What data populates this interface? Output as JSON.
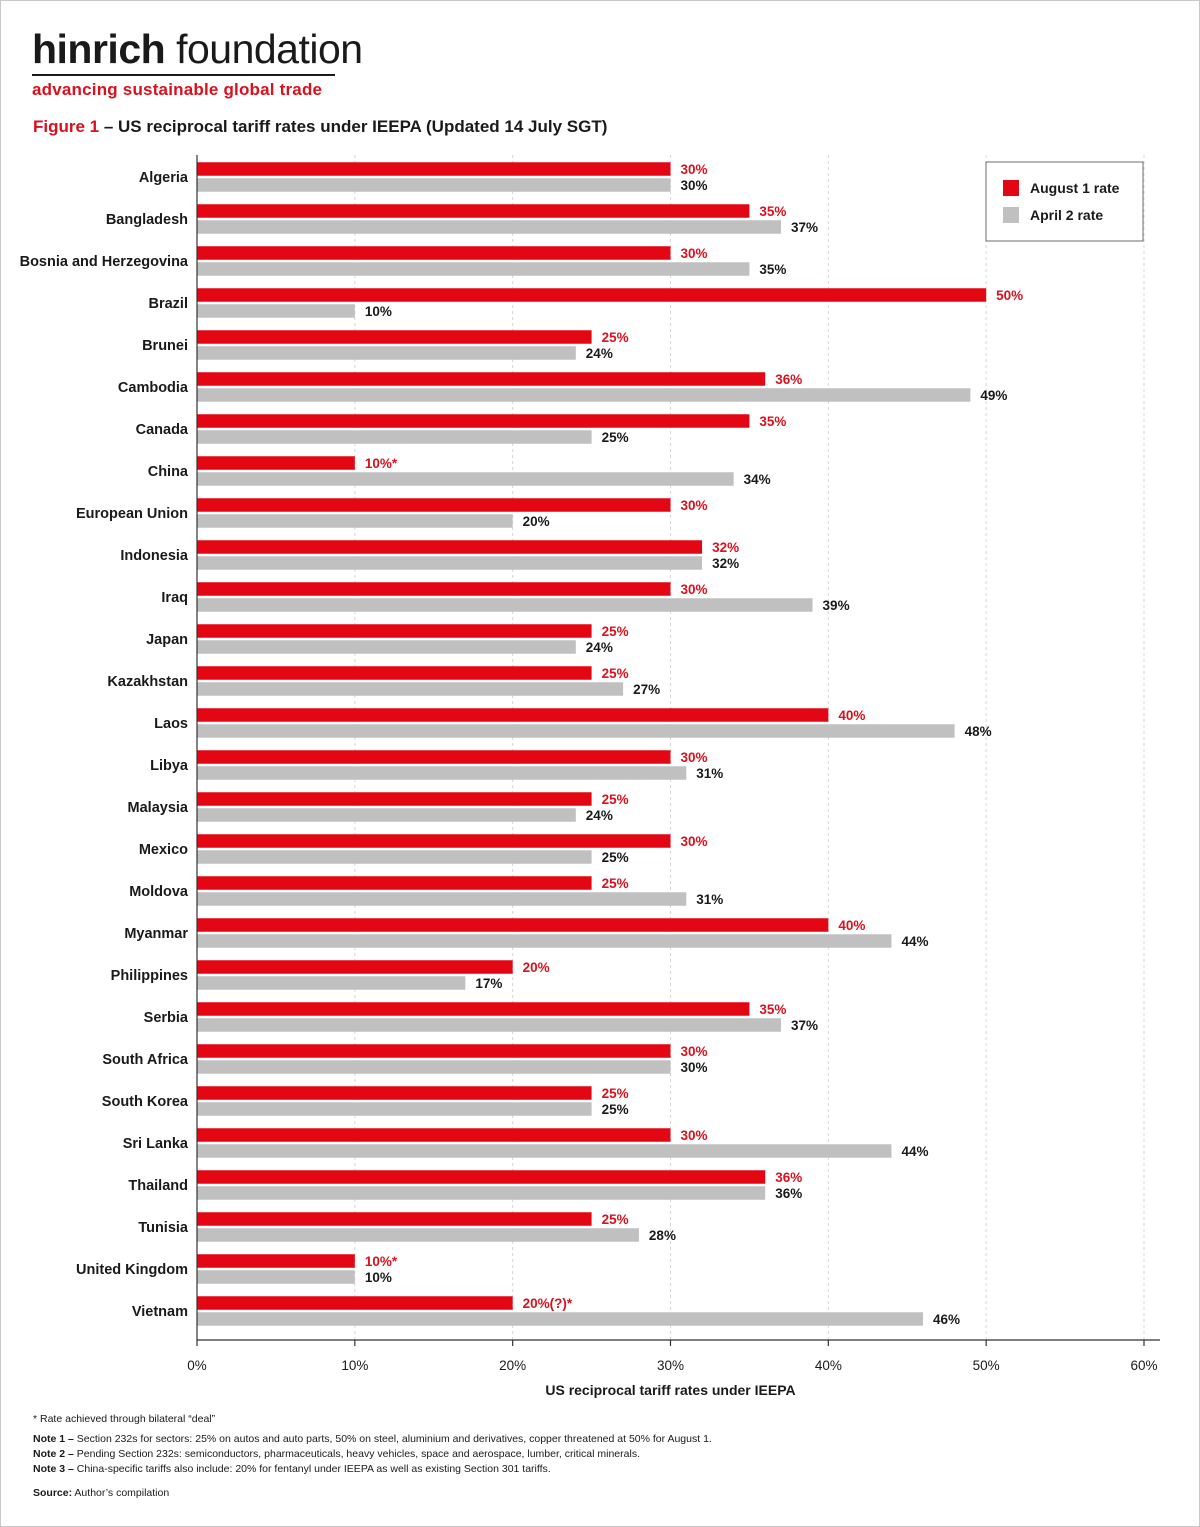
{
  "brand": {
    "name_bold": "hinrich",
    "name_rest": " foundation",
    "tagline": "advancing sustainable global trade",
    "accent": "#d9101d"
  },
  "figure": {
    "label": "Figure 1",
    "separator": " – ",
    "title": "US reciprocal tariff rates under IEEPA (Updated 14 July SGT)"
  },
  "chart_data": {
    "type": "bar",
    "orientation": "horizontal",
    "categories": [
      "Algeria",
      "Bangladesh",
      "Bosnia and Herzegovina",
      "Brazil",
      "Brunei",
      "Cambodia",
      "Canada",
      "China",
      "European Union",
      "Indonesia",
      "Iraq",
      "Japan",
      "Kazakhstan",
      "Laos",
      "Libya",
      "Malaysia",
      "Mexico",
      "Moldova",
      "Myanmar",
      "Philippines",
      "Serbia",
      "South Africa",
      "South Korea",
      "Sri Lanka",
      "Thailand",
      "Tunisia",
      "United Kingdom",
      "Vietnam"
    ],
    "series": [
      {
        "name": "August 1 rate",
        "color": "#e30613",
        "values": [
          30,
          35,
          30,
          50,
          25,
          36,
          35,
          10,
          30,
          32,
          30,
          25,
          25,
          40,
          30,
          25,
          30,
          25,
          40,
          20,
          35,
          30,
          25,
          30,
          36,
          25,
          10,
          20
        ],
        "labels": [
          "30%",
          "35%",
          "30%",
          "50%",
          "25%",
          "36%",
          "35%",
          "10%*",
          "30%",
          "32%",
          "30%",
          "25%",
          "25%",
          "40%",
          "30%",
          "25%",
          "30%",
          "25%",
          "40%",
          "20%",
          "35%",
          "30%",
          "25%",
          "30%",
          "36%",
          "25%",
          "10%*",
          "20%(?)*"
        ]
      },
      {
        "name": "April 2 rate",
        "color": "#c0c0c0",
        "values": [
          30,
          37,
          35,
          10,
          24,
          49,
          25,
          34,
          20,
          32,
          39,
          24,
          27,
          48,
          31,
          24,
          25,
          31,
          44,
          17,
          37,
          30,
          25,
          44,
          36,
          28,
          10,
          46
        ],
        "labels": [
          "30%",
          "37%",
          "35%",
          "10%",
          "24%",
          "49%",
          "25%",
          "34%",
          "20%",
          "32%",
          "39%",
          "24%",
          "27%",
          "48%",
          "31%",
          "24%",
          "25%",
          "31%",
          "44%",
          "17%",
          "37%",
          "30%",
          "25%",
          "44%",
          "36%",
          "28%",
          "10%",
          "46%"
        ]
      }
    ],
    "xlim": [
      0,
      60
    ],
    "xticks": [
      "0%",
      "10%",
      "20%",
      "30%",
      "40%",
      "50%",
      "60%"
    ],
    "xlabel": "US reciprocal tariff rates under IEEPA",
    "ylabel": "",
    "grid": "vertical-dashed",
    "legend": "top-right"
  },
  "notes": {
    "asterisk": "* Rate achieved through bilateral “deal”",
    "note1_label": "Note 1 –",
    "note1_text": " Section 232s for sectors:  25% on autos and auto parts, 50% on steel, aluminium and derivatives, copper threatened at 50% for August 1.",
    "note2_label": "Note 2 –",
    "note2_text": " Pending Section 232s: semiconductors, pharmaceuticals, heavy vehicles, space and aerospace, lumber, critical minerals.",
    "note3_label": "Note 3 –",
    "note3_text": " China-specific tariffs also include: 20% for fentanyl under IEEPA as well as existing Section 301 tariffs.",
    "source_label": "Source:",
    "source_text": " Author’s compilation"
  }
}
